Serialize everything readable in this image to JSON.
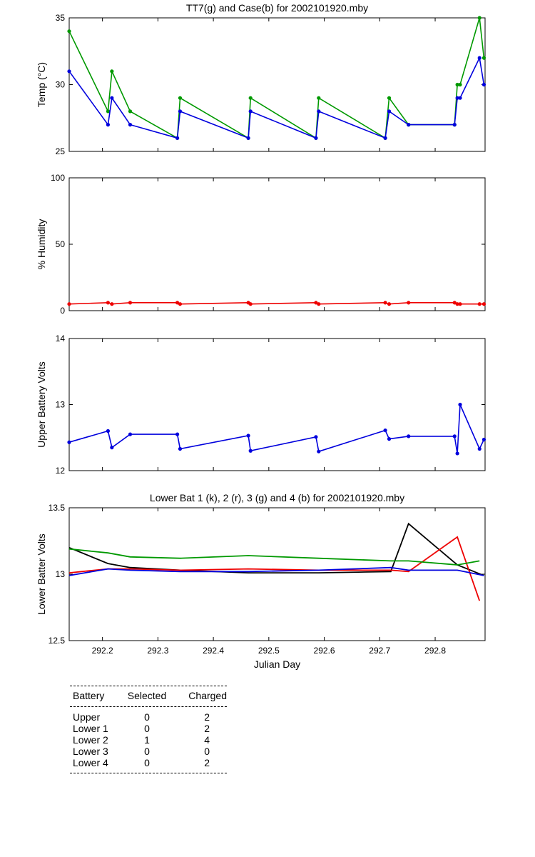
{
  "colors": {
    "green": "#009900",
    "blue": "#0000dd",
    "red": "#ee0000",
    "black": "#000000"
  },
  "x_ticks": [
    "292.2",
    "292.3",
    "292.4",
    "292.5",
    "292.6",
    "292.7",
    "292.8"
  ],
  "chart_data": [
    {
      "type": "line",
      "title": "TT7(g) and Case(b) for 2002101920.mby",
      "xlabel": "",
      "ylabel": "Temp  (°C)",
      "xlim": [
        292.14,
        292.89
      ],
      "ylim": [
        25,
        35
      ],
      "yticks": [
        "25",
        "30",
        "35"
      ],
      "grid": false,
      "series": [
        {
          "name": "TT7",
          "color": "green",
          "markers": true,
          "x": [
            292.14,
            292.21,
            292.217,
            292.25,
            292.335,
            292.34,
            292.463,
            292.467,
            292.585,
            292.59,
            292.71,
            292.717,
            292.752,
            292.835,
            292.84,
            292.845,
            292.88,
            292.888
          ],
          "y": [
            34,
            28,
            31,
            28,
            26,
            29,
            26,
            29,
            26,
            29,
            26,
            29,
            27,
            27,
            30,
            30,
            35,
            32
          ]
        },
        {
          "name": "Case",
          "color": "blue",
          "markers": true,
          "x": [
            292.14,
            292.21,
            292.217,
            292.25,
            292.335,
            292.34,
            292.463,
            292.467,
            292.585,
            292.59,
            292.71,
            292.717,
            292.752,
            292.835,
            292.84,
            292.845,
            292.88,
            292.888
          ],
          "y": [
            31,
            27,
            29,
            27,
            26,
            28,
            26,
            28,
            26,
            28,
            26,
            28,
            27,
            27,
            29,
            29,
            32,
            30
          ]
        }
      ]
    },
    {
      "type": "line",
      "title": "",
      "xlabel": "",
      "ylabel": "% Humidity",
      "xlim": [
        292.14,
        292.89
      ],
      "ylim": [
        0,
        100
      ],
      "yticks": [
        "0",
        "50",
        "100"
      ],
      "grid": false,
      "series": [
        {
          "name": "",
          "color": "red",
          "markers": true,
          "x": [
            292.14,
            292.21,
            292.217,
            292.25,
            292.335,
            292.34,
            292.463,
            292.467,
            292.585,
            292.59,
            292.71,
            292.717,
            292.752,
            292.835,
            292.84,
            292.845,
            292.88,
            292.888
          ],
          "y": [
            5,
            6,
            5,
            6,
            6,
            5,
            6,
            5,
            6,
            5,
            6,
            5,
            6,
            6,
            5,
            5,
            5,
            5
          ]
        }
      ]
    },
    {
      "type": "line",
      "title": "",
      "xlabel": "",
      "ylabel": "Upper Battery Volts",
      "xlim": [
        292.14,
        292.89
      ],
      "ylim": [
        12,
        14
      ],
      "yticks": [
        "12",
        "13",
        "14"
      ],
      "grid": false,
      "series": [
        {
          "name": "",
          "color": "blue",
          "markers": true,
          "x": [
            292.14,
            292.21,
            292.217,
            292.25,
            292.335,
            292.34,
            292.463,
            292.467,
            292.585,
            292.59,
            292.71,
            292.717,
            292.752,
            292.835,
            292.84,
            292.845,
            292.88,
            292.888
          ],
          "y": [
            12.43,
            12.6,
            12.35,
            12.55,
            12.55,
            12.33,
            12.53,
            12.3,
            12.51,
            12.29,
            12.61,
            12.48,
            12.52,
            12.52,
            12.26,
            13.0,
            12.33,
            12.47
          ]
        }
      ]
    },
    {
      "type": "line",
      "title": "Lower Bat 1 (k), 2 (r), 3 (g) and 4 (b) for 2002101920.mby",
      "xlabel": "Julian Day",
      "ylabel": "Lower Batter Volts",
      "xlim": [
        292.14,
        292.89
      ],
      "ylim": [
        12.5,
        13.5
      ],
      "yticks": [
        "12.5",
        "13",
        "13.5"
      ],
      "grid": false,
      "series": [
        {
          "name": "1",
          "color": "black",
          "markers": false,
          "x": [
            292.14,
            292.21,
            292.25,
            292.34,
            292.463,
            292.59,
            292.72,
            292.752,
            292.84,
            292.888
          ],
          "y": [
            13.2,
            13.08,
            13.05,
            13.03,
            13.01,
            13.01,
            13.02,
            13.38,
            13.07,
            12.99
          ]
        },
        {
          "name": "2",
          "color": "red",
          "markers": false,
          "x": [
            292.14,
            292.21,
            292.25,
            292.34,
            292.463,
            292.59,
            292.72,
            292.752,
            292.84,
            292.88
          ],
          "y": [
            13.01,
            13.04,
            13.04,
            13.03,
            13.04,
            13.03,
            13.03,
            13.02,
            13.28,
            12.8
          ]
        },
        {
          "name": "3",
          "color": "green",
          "markers": false,
          "x": [
            292.14,
            292.21,
            292.25,
            292.34,
            292.463,
            292.59,
            292.72,
            292.752,
            292.84,
            292.88
          ],
          "y": [
            13.19,
            13.16,
            13.13,
            13.12,
            13.14,
            13.12,
            13.1,
            13.1,
            13.07,
            13.1
          ]
        },
        {
          "name": "4",
          "color": "blue",
          "markers": false,
          "x": [
            292.14,
            292.21,
            292.25,
            292.34,
            292.463,
            292.59,
            292.72,
            292.752,
            292.84,
            292.888
          ],
          "y": [
            12.99,
            13.04,
            13.03,
            13.02,
            13.02,
            13.03,
            13.05,
            13.03,
            13.03,
            12.99
          ]
        }
      ]
    }
  ],
  "table": {
    "headers": [
      "Battery",
      "Selected",
      "Charged"
    ],
    "rows": [
      [
        "Upper",
        "0",
        "2"
      ],
      [
        "Lower 1",
        "0",
        "2"
      ],
      [
        "Lower 2",
        "1",
        "4"
      ],
      [
        "Lower 3",
        "0",
        "0"
      ],
      [
        "Lower 4",
        "0",
        "2"
      ]
    ]
  }
}
